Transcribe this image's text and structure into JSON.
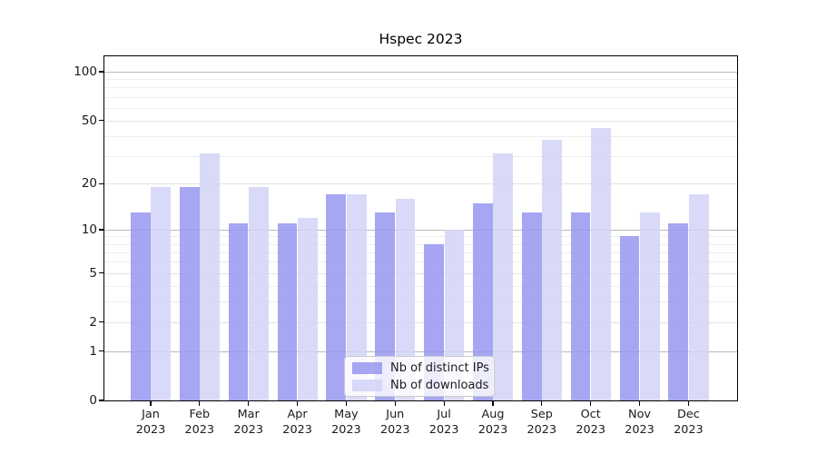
{
  "figure": {
    "title": "Hspec 2023"
  },
  "chart_data": {
    "type": "bar",
    "title": "Hspec 2023",
    "categories": [
      "Jan 2023",
      "Feb 2023",
      "Mar 2023",
      "Apr 2023",
      "May 2023",
      "Jun 2023",
      "Jul 2023",
      "Aug 2023",
      "Sep 2023",
      "Oct 2023",
      "Nov 2023",
      "Dec 2023"
    ],
    "series": [
      {
        "name": "Nb of distinct IPs",
        "color": "#9696f0",
        "values": [
          13,
          19,
          11,
          11,
          17,
          13,
          8,
          15,
          13,
          13,
          9,
          11
        ]
      },
      {
        "name": "Nb of downloads",
        "color": "#d2d2f7",
        "values": [
          19,
          31,
          19,
          12,
          17,
          16,
          10,
          31,
          38,
          45,
          13,
          17
        ]
      }
    ],
    "fill_opacity": 0.85,
    "xlabel": "",
    "ylabel": "",
    "y_scale": "log1p",
    "y_ticks": [
      0,
      1,
      2,
      5,
      10,
      20,
      50,
      100
    ],
    "y_minor_ticks": [
      3,
      4,
      6,
      7,
      8,
      9,
      30,
      40,
      60,
      70,
      80,
      90
    ],
    "y_major_gridlines": [
      1,
      10,
      100
    ],
    "ylim": [
      0,
      115
    ],
    "grid": true,
    "legend": {
      "position": "lower-center-inside",
      "entries": [
        "Nb of distinct IPs",
        "Nb of downloads"
      ]
    },
    "colors": {
      "grid_major": "#bbbbbb",
      "grid_medium": "#e3e3e3",
      "grid_minor": "#eeeeee",
      "spine": "#000000",
      "text": "#1a1a1a",
      "background": "#ffffff"
    }
  }
}
